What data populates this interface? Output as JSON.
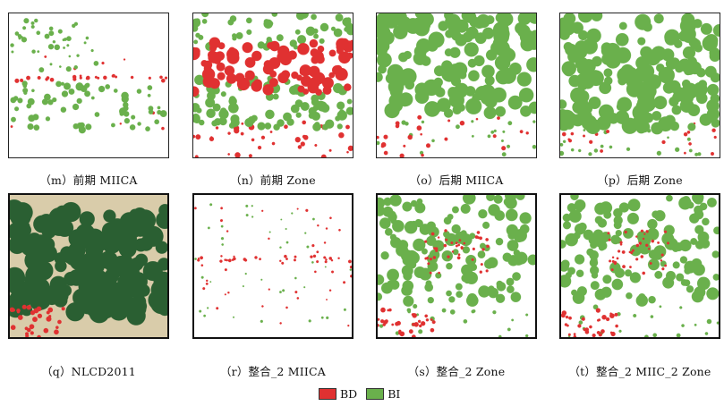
{
  "colors": {
    "bd": "#e03131",
    "bi": "#6ab04c",
    "forest": "#2a5f32",
    "tan": "#d9ccaa"
  },
  "panels": [
    {
      "caption": "（m）前期 MIICA"
    },
    {
      "caption": "（n）前期 Zone"
    },
    {
      "caption": "（o）后期 MIICA"
    },
    {
      "caption": "（p）后期 Zone"
    },
    {
      "caption": "（q）NLCD2011"
    },
    {
      "caption": "（r）整合_2 MIICA"
    },
    {
      "caption": "（s）整合_2 Zone"
    },
    {
      "caption": "（t）整合_2 MIIC_2 Zone"
    }
  ],
  "legend": [
    {
      "label": "BD",
      "color": "#e03131"
    },
    {
      "label": "BI",
      "color": "#6ab04c"
    }
  ]
}
